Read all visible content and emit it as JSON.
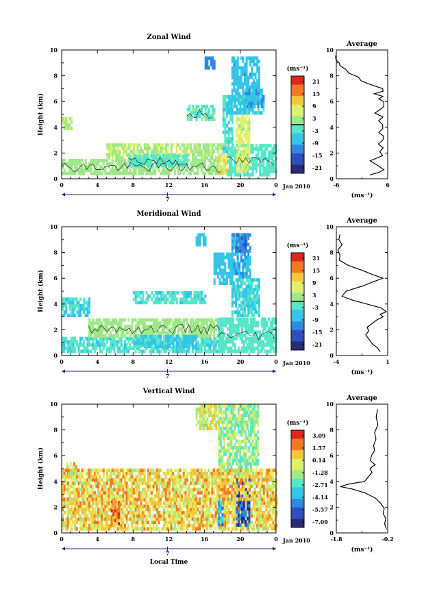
{
  "figure": {
    "xlabel": "Local Time",
    "date_label": "Jan 2010",
    "day_marker": "7",
    "colorbar_unit": "(ms⁻¹)",
    "profile_xlabel": "(ms⁻¹)",
    "profile_title": "Average",
    "ylabel": "Height (km)"
  },
  "chart_data": [
    {
      "type": "heatmap",
      "title": "Zonal Wind",
      "xlim": [
        0,
        24
      ],
      "ylim": [
        0,
        10
      ],
      "xticks": [
        "0",
        "4",
        "8",
        "12",
        "16",
        "20",
        "0"
      ],
      "yticks": [
        "0",
        "2",
        "4",
        "6",
        "8",
        "10"
      ],
      "colorbar": {
        "ticks": [
          "21",
          "15",
          "9",
          "3",
          "-3",
          "-9",
          "-15",
          "-21"
        ],
        "range": [
          -24,
          24
        ],
        "zero_line": true
      },
      "regions": [
        {
          "x": [
            0,
            18
          ],
          "y": [
            0.3,
            1.5
          ],
          "v": 3
        },
        {
          "x": [
            5,
            18
          ],
          "y": [
            1.5,
            2.7
          ],
          "v": 4
        },
        {
          "x": [
            7.5,
            14
          ],
          "y": [
            0.9,
            1.9
          ],
          "v": -2
        },
        {
          "x": [
            17.5,
            18.5
          ],
          "y": [
            0.3,
            2
          ],
          "v": 9
        },
        {
          "x": [
            18.5,
            24
          ],
          "y": [
            0.2,
            2.5
          ],
          "v": -3
        },
        {
          "x": [
            19.5,
            21
          ],
          "y": [
            0.5,
            5
          ],
          "v": 6
        },
        {
          "x": [
            18,
            19
          ],
          "y": [
            2,
            6.5
          ],
          "v": -4
        },
        {
          "x": [
            19,
            22
          ],
          "y": [
            6,
            9.5
          ],
          "v": -8
        },
        {
          "x": [
            18.5,
            22.5
          ],
          "y": [
            5,
            6.3
          ],
          "v": -6
        },
        {
          "x": [
            14,
            17
          ],
          "y": [
            4.5,
            5.7
          ],
          "v": -1
        },
        {
          "x": [
            16,
            17
          ],
          "y": [
            8.5,
            9.5
          ],
          "v": -12
        },
        {
          "x": [
            0,
            1
          ],
          "y": [
            3.8,
            4.8
          ],
          "v": 5
        },
        {
          "x": [
            20.5,
            22.5
          ],
          "y": [
            5.5,
            6.8
          ],
          "v": -9
        }
      ],
      "contour_zero": true,
      "profile": {
        "xlim": [
          -6,
          6
        ],
        "xticks": [
          "-6",
          "6"
        ],
        "yticks": [
          "0",
          "2",
          "4",
          "6",
          "8",
          "10"
        ],
        "x": [
          2,
          4,
          5,
          4,
          2,
          5,
          4,
          5,
          4,
          5,
          5,
          4,
          5,
          5,
          4,
          5,
          3,
          4,
          5,
          5,
          5,
          4,
          5,
          3,
          5,
          5,
          2,
          0,
          -1,
          -3,
          -4,
          -5,
          -5.5,
          -6,
          -6,
          -6
        ],
        "y": [
          0.3,
          0.5,
          0.7,
          1.0,
          1.4,
          1.8,
          2.1,
          2.4,
          2.7,
          3.0,
          3.3,
          3.6,
          3.9,
          4.2,
          4.5,
          4.8,
          5.1,
          5.3,
          5.6,
          5.8,
          6.0,
          6.2,
          6.4,
          6.6,
          6.8,
          7.0,
          7.3,
          7.6,
          7.9,
          8.2,
          8.5,
          8.8,
          9.0,
          9.2,
          9.4,
          9.6
        ]
      }
    },
    {
      "type": "heatmap",
      "title": "Meridional Wind",
      "xlim": [
        0,
        24
      ],
      "ylim": [
        0,
        10
      ],
      "xticks": [
        "0",
        "4",
        "8",
        "12",
        "16",
        "20",
        "0"
      ],
      "yticks": [
        "0",
        "2",
        "4",
        "6",
        "8",
        "10"
      ],
      "colorbar": {
        "ticks": [
          "21",
          "15",
          "9",
          "3",
          "-3",
          "-9",
          "-15",
          "-21"
        ],
        "range": [
          -24,
          24
        ],
        "zero_line": true
      },
      "regions": [
        {
          "x": [
            0,
            18
          ],
          "y": [
            0.2,
            1.4
          ],
          "v": -4
        },
        {
          "x": [
            3,
            18
          ],
          "y": [
            1.4,
            2.7
          ],
          "v": 3
        },
        {
          "x": [
            8,
            15
          ],
          "y": [
            0.6,
            1.6
          ],
          "v": -6
        },
        {
          "x": [
            17.5,
            24
          ],
          "y": [
            0.2,
            2.8
          ],
          "v": -3
        },
        {
          "x": [
            19,
            22
          ],
          "y": [
            3,
            6
          ],
          "v": -5
        },
        {
          "x": [
            19,
            21
          ],
          "y": [
            6,
            9.5
          ],
          "v": -9
        },
        {
          "x": [
            19.5,
            20.5
          ],
          "y": [
            8,
            9.5
          ],
          "v": -14
        },
        {
          "x": [
            17,
            19
          ],
          "y": [
            5.5,
            8
          ],
          "v": -7
        },
        {
          "x": [
            0,
            3
          ],
          "y": [
            3,
            4.5
          ],
          "v": -5
        },
        {
          "x": [
            8,
            16
          ],
          "y": [
            4,
            5
          ],
          "v": -4
        },
        {
          "x": [
            15,
            16
          ],
          "y": [
            8.5,
            9.3
          ],
          "v": -8
        }
      ],
      "contour_zero": true,
      "profile": {
        "xlim": [
          -4,
          1
        ],
        "xticks": [
          "-4",
          "1"
        ],
        "yticks": [
          "0",
          "2",
          "4",
          "6",
          "8",
          "10"
        ],
        "x": [
          0.3,
          0,
          -0.5,
          -0.8,
          -1.2,
          -0.8,
          -1,
          -0.5,
          0,
          0.6,
          0.2,
          0.8,
          0.4,
          -1,
          -2.5,
          -3.5,
          -3,
          -1.5,
          -0.5,
          0.6,
          -0.5,
          -1.5,
          -2.8,
          -3.7,
          -3.6,
          -3.8,
          -3.5,
          -3.8,
          -3.6
        ],
        "y": [
          0.3,
          0.6,
          0.9,
          1.2,
          1.6,
          1.9,
          2.2,
          2.5,
          2.8,
          3.0,
          3.2,
          3.4,
          3.7,
          4.0,
          4.3,
          4.6,
          5.0,
          5.4,
          5.7,
          6.0,
          6.3,
          6.6,
          7.0,
          7.4,
          7.8,
          8.2,
          8.6,
          9.0,
          9.4
        ]
      }
    },
    {
      "type": "heatmap",
      "title": "Vertical Wind",
      "xlim": [
        0,
        24
      ],
      "ylim": [
        0,
        10
      ],
      "xticks": [
        "0",
        "4",
        "8",
        "12",
        "16",
        "20",
        "0"
      ],
      "yticks": [
        "0",
        "2",
        "4",
        "6",
        "8",
        "10"
      ],
      "colorbar": {
        "ticks": [
          "3.09",
          "1.57",
          "0.14",
          "-1.28",
          "-2.71",
          "-4.14",
          "-5.57",
          "-7.09"
        ],
        "range": [
          -7.8,
          3.8
        ],
        "zero_line": false
      },
      "regions": [
        {
          "x": [
            0,
            18
          ],
          "y": [
            0.2,
            2.5
          ],
          "v": 0.6
        },
        {
          "x": [
            5.5,
            6.5
          ],
          "y": [
            0.6,
            2.5
          ],
          "v": 2.2
        },
        {
          "x": [
            18,
            24
          ],
          "y": [
            0.2,
            2.5
          ],
          "v": 0.3
        },
        {
          "x": [
            19.5,
            21
          ],
          "y": [
            0.5,
            4.5
          ],
          "v": -6
        },
        {
          "x": [
            17.5,
            18
          ],
          "y": [
            0.3,
            3
          ],
          "v": -4
        },
        {
          "x": [
            17.5,
            22
          ],
          "y": [
            4.5,
            10
          ],
          "v": -1.4
        },
        {
          "x": [
            15,
            17.5
          ],
          "y": [
            8,
            10
          ],
          "v": -0.3
        },
        {
          "x": [
            0,
            24
          ],
          "y": [
            2.5,
            5
          ],
          "v": 0.5
        },
        {
          "x": [
            0.5,
            1.5
          ],
          "y": [
            4.5,
            5.5
          ],
          "v": 0.3
        }
      ],
      "contour_zero": false,
      "profile": {
        "xlim": [
          -1.8,
          -0.2
        ],
        "xticks": [
          "-1.8",
          "-0.2"
        ],
        "yticks": [
          "0",
          "2",
          "4",
          "6",
          "8",
          "10"
        ],
        "x": [
          -0.25,
          -0.3,
          -0.27,
          -0.35,
          -0.3,
          -0.4,
          -0.6,
          -0.9,
          -1.3,
          -1.7,
          -1.4,
          -0.9,
          -0.8,
          -0.7,
          -0.75,
          -0.6,
          -0.75,
          -0.7,
          -0.6,
          -0.65,
          -0.55,
          -0.6,
          -0.5,
          -0.55,
          -0.5
        ],
        "y": [
          0.3,
          0.7,
          1.1,
          1.5,
          1.9,
          2.3,
          2.7,
          3.1,
          3.4,
          3.6,
          3.8,
          4.0,
          4.3,
          4.7,
          5.0,
          5.3,
          5.6,
          6.0,
          6.4,
          6.8,
          7.3,
          7.8,
          8.4,
          9.0,
          9.6
        ]
      }
    }
  ],
  "colors": {
    "scale": [
      "#2a2a7a",
      "#2f4fbf",
      "#2e8ae0",
      "#36c4e8",
      "#56e6c8",
      "#9ee88a",
      "#dff06a",
      "#f6c53a",
      "#f07a24",
      "#e0261c"
    ]
  }
}
